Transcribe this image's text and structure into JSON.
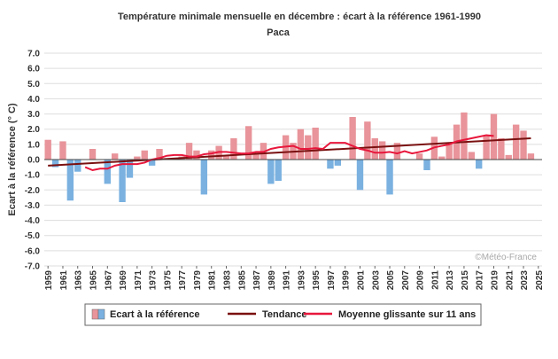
{
  "chart_data": {
    "type": "bar",
    "title": "Température minimale mensuelle en décembre : écart à la référence 1961-1990",
    "subtitle": "Paca",
    "ylabel": "Ecart à la référence (° C)",
    "xlabel": "",
    "ylim": [
      -7.0,
      7.0
    ],
    "yticks": [
      "-7.0",
      "-6.0",
      "-5.0",
      "-4.0",
      "-3.0",
      "-2.0",
      "-1.0",
      "0.0",
      "1.0",
      "2.0",
      "3.0",
      "4.0",
      "5.0",
      "6.0",
      "7.0"
    ],
    "xlim": [
      1959,
      2025
    ],
    "xticks": [
      "1959",
      "1961",
      "1963",
      "1965",
      "1967",
      "1969",
      "1971",
      "1973",
      "1975",
      "1977",
      "1979",
      "1981",
      "1983",
      "1985",
      "1987",
      "1989",
      "1991",
      "1993",
      "1995",
      "1997",
      "1999",
      "2001",
      "2003",
      "2005",
      "2007",
      "2009",
      "2011",
      "2013",
      "2015",
      "2017",
      "2019",
      "2021",
      "2023",
      "2025"
    ],
    "grid": true,
    "legend_position": "bottom",
    "colors": {
      "positive": "#e8949a",
      "negative": "#7ab1e0",
      "trend": "#7a1010",
      "rolling": "#e8173c",
      "grid": "#dddddd"
    },
    "series": [
      {
        "name": "Ecart à la référence",
        "type": "bar",
        "x": [
          1959,
          1960,
          1961,
          1962,
          1963,
          1964,
          1965,
          1966,
          1967,
          1968,
          1969,
          1970,
          1971,
          1972,
          1973,
          1974,
          1975,
          1976,
          1977,
          1978,
          1979,
          1980,
          1981,
          1982,
          1983,
          1984,
          1985,
          1986,
          1987,
          1988,
          1989,
          1990,
          1991,
          1992,
          1993,
          1994,
          1995,
          1996,
          1997,
          1998,
          1999,
          2000,
          2001,
          2002,
          2003,
          2004,
          2005,
          2006,
          2007,
          2008,
          2009,
          2010,
          2011,
          2012,
          2013,
          2014,
          2015,
          2016,
          2017,
          2018,
          2019,
          2020,
          2021,
          2022,
          2023,
          2024
        ],
        "values": [
          1.3,
          -0.5,
          1.2,
          -2.7,
          -0.8,
          0.0,
          0.7,
          0.0,
          -1.6,
          0.4,
          -2.8,
          -1.2,
          0.2,
          0.6,
          -0.4,
          0.7,
          0.0,
          0.0,
          0.2,
          1.1,
          0.6,
          -2.3,
          0.6,
          0.9,
          0.3,
          1.4,
          0.0,
          2.2,
          0.4,
          1.1,
          -1.6,
          -1.4,
          1.6,
          1.1,
          2.0,
          1.6,
          2.1,
          0.0,
          -0.6,
          -0.4,
          0.0,
          2.8,
          -2.0,
          2.5,
          1.4,
          1.2,
          -2.3,
          1.1,
          0.0,
          0.0,
          0.4,
          -0.7,
          1.5,
          0.2,
          1.1,
          2.3,
          3.1,
          0.5,
          -0.6,
          1.6,
          3.0,
          1.4,
          0.3,
          2.3,
          1.9,
          0.4
        ]
      },
      {
        "name": "Tendance",
        "type": "line",
        "x": [
          1959,
          2024
        ],
        "values": [
          -0.4,
          1.4
        ]
      },
      {
        "name": "Moyenne glissante sur 11 ans",
        "type": "line",
        "x": [
          1964,
          1965,
          1966,
          1967,
          1968,
          1969,
          1970,
          1971,
          1972,
          1973,
          1974,
          1975,
          1976,
          1977,
          1978,
          1979,
          1980,
          1981,
          1982,
          1983,
          1984,
          1985,
          1986,
          1987,
          1988,
          1989,
          1990,
          1991,
          1992,
          1993,
          1994,
          1995,
          1996,
          1997,
          1998,
          1999,
          2000,
          2001,
          2002,
          2003,
          2004,
          2005,
          2006,
          2007,
          2008,
          2009,
          2010,
          2011,
          2012,
          2013,
          2014,
          2015,
          2016,
          2017,
          2018,
          2019
        ],
        "values": [
          -0.5,
          -0.7,
          -0.6,
          -0.6,
          -0.4,
          -0.3,
          -0.3,
          -0.3,
          -0.2,
          0.0,
          0.1,
          0.25,
          0.3,
          0.3,
          0.2,
          0.2,
          0.35,
          0.4,
          0.5,
          0.5,
          0.45,
          0.4,
          0.4,
          0.5,
          0.5,
          0.7,
          0.8,
          0.85,
          0.9,
          0.7,
          0.7,
          0.75,
          0.7,
          1.1,
          1.1,
          1.1,
          0.9,
          0.7,
          0.6,
          0.45,
          0.45,
          0.5,
          0.4,
          0.55,
          0.4,
          0.5,
          0.6,
          0.8,
          0.9,
          1.0,
          1.2,
          1.3,
          1.4,
          1.5,
          1.6,
          1.55
        ]
      }
    ],
    "legend": [
      "Ecart à la référence",
      "Tendance",
      "Moyenne glissante sur 11 ans"
    ],
    "watermark": "©Météo-France"
  }
}
